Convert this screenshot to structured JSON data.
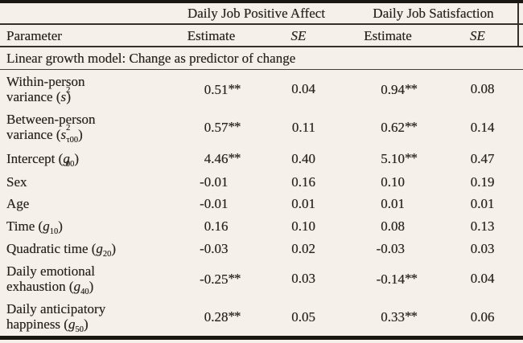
{
  "page": {
    "background_color": "#f5f0e9",
    "text_color": "#29241f",
    "rule_color_dark": "#1a1713",
    "rule_color_mid": "#35302a"
  },
  "table": {
    "span_headers": [
      {
        "label": "Daily Job Positive Affect"
      },
      {
        "label": "Daily Job Satisfaction"
      }
    ],
    "columns": {
      "parameter": "Parameter",
      "estimate_1": "Estimate",
      "se_1": "SE",
      "estimate_2": "Estimate",
      "se_2": "SE"
    },
    "section_header": "Linear growth model: Change as predictor of change",
    "rows": [
      {
        "pre": "Within-person\nvariance (",
        "sym": "s",
        "sup": "2",
        "sub": "",
        "post": ")",
        "v": [
          "0.51**",
          "0.04",
          "0.94**",
          "0.08"
        ]
      },
      {
        "pre": "Between-person\nvariance (",
        "sym": "s",
        "sup": "2",
        "sub": "τ00",
        "post": ")",
        "v": [
          "0.57**",
          "0.11",
          "0.62**",
          "0.14"
        ]
      },
      {
        "pre": "Intercept (",
        "sym": "g",
        "sup": "",
        "sub": "00",
        "post": ")",
        "v": [
          "4.46**",
          "0.40",
          "5.10**",
          "0.47"
        ]
      },
      {
        "pre": "Sex",
        "sym": "",
        "sup": "",
        "sub": "",
        "post": "",
        "v": [
          "-0.01",
          "0.16",
          "0.10",
          "0.19"
        ]
      },
      {
        "pre": "Age",
        "sym": "",
        "sup": "",
        "sub": "",
        "post": "",
        "v": [
          "-0.01",
          "0.01",
          "0.01",
          "0.01"
        ]
      },
      {
        "pre": "Time (",
        "sym": "g",
        "sup": "",
        "sub": "10",
        "post": ")",
        "v": [
          "0.16",
          "0.10",
          "0.08",
          "0.13"
        ]
      },
      {
        "pre": "Quadratic time (",
        "sym": "g",
        "sup": "",
        "sub": "20",
        "post": ")",
        "v": [
          "-0.03",
          "0.02",
          "-0.03",
          "0.03"
        ]
      },
      {
        "pre": "Daily emotional\nexhaustion (",
        "sym": "g",
        "sup": "",
        "sub": "40",
        "post": ")",
        "v": [
          "-0.25**",
          "0.03",
          "-0.14**",
          "0.04"
        ]
      },
      {
        "pre": "Daily anticipatory\nhappiness (",
        "sym": "g",
        "sup": "",
        "sub": "50",
        "post": ")",
        "v": [
          "0.28**",
          "0.05",
          "0.33**",
          "0.06"
        ]
      }
    ]
  }
}
